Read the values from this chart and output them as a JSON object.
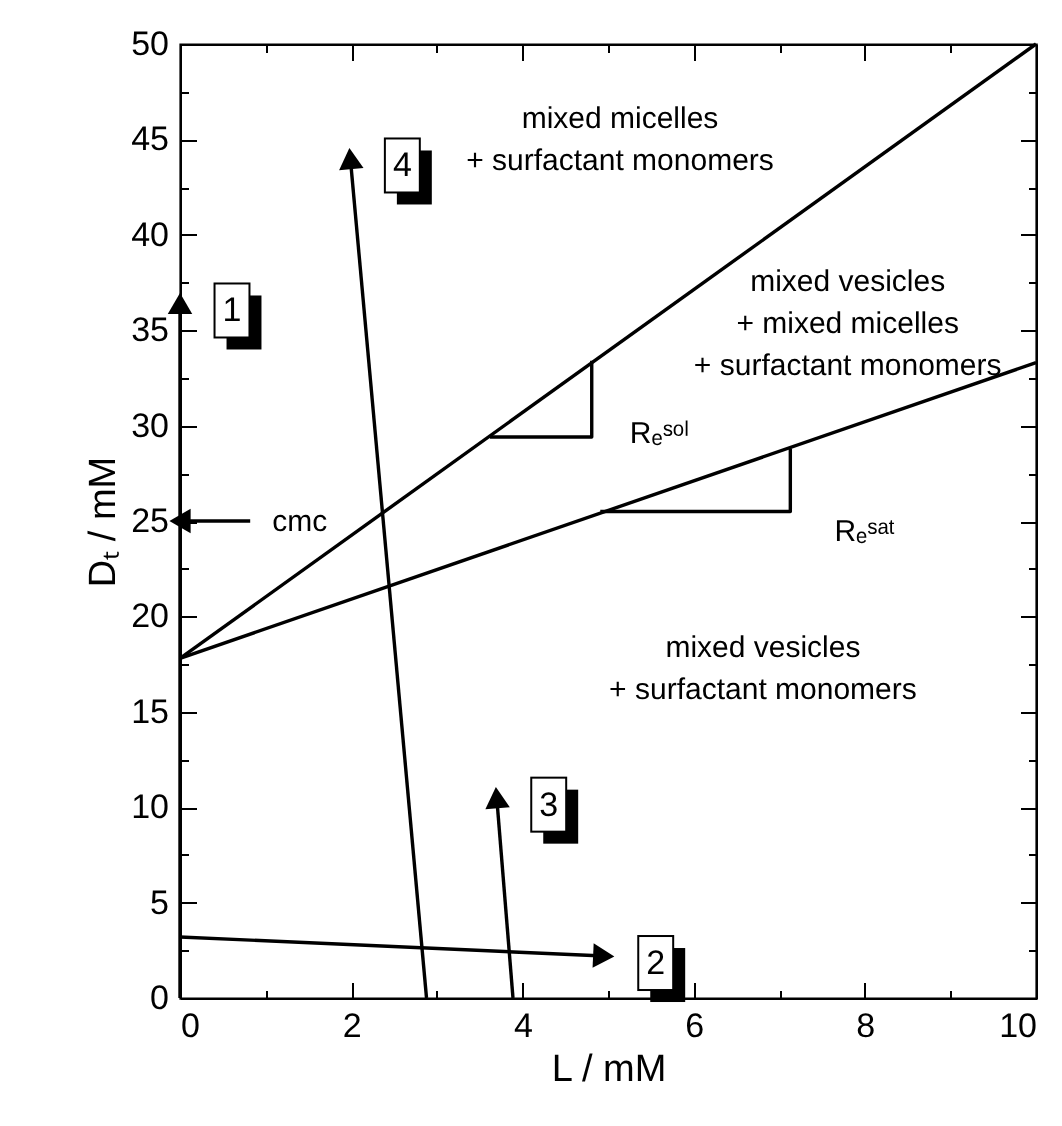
{
  "chart_data": {
    "type": "line",
    "xlabel": "L / mM",
    "ylabel": "Dₜ / mM",
    "xlim": [
      0,
      10
    ],
    "ylim": [
      0,
      50
    ],
    "xticks": [
      0,
      {
        "value": 1,
        "label": null
      },
      2,
      {
        "value": 3,
        "label": null
      },
      4,
      {
        "value": 5,
        "label": null
      },
      6,
      {
        "value": 7,
        "label": null
      },
      8,
      {
        "value": 9,
        "label": null
      },
      10
    ],
    "yticks": [
      0,
      {
        "value": 2.5,
        "label": null
      },
      5,
      {
        "value": 7.5,
        "label": null
      },
      10,
      {
        "value": 12.5,
        "label": null
      },
      15,
      {
        "value": 17.5,
        "label": null
      },
      20,
      {
        "value": 22.5,
        "label": null
      },
      25,
      {
        "value": 27.5,
        "label": null
      },
      30,
      {
        "value": 32.5,
        "label": null
      },
      35,
      {
        "value": 37.5,
        "label": null
      },
      40,
      {
        "value": 42.5,
        "label": null
      },
      45,
      {
        "value": 47.5,
        "label": null
      },
      50
    ],
    "grid": false,
    "series": [
      {
        "color": "#000000",
        "x": [
          0,
          10
        ],
        "values": [
          17.8,
          50
        ]
      },
      {
        "color": "#000000",
        "x": [
          0,
          10
        ],
        "values": [
          17.8,
          33.3
        ]
      },
      {
        "color": "#000000",
        "x": [
          3.62,
          4.81,
          4.81
        ],
        "values": [
          29.4,
          29.4,
          33.4
        ]
      },
      {
        "color": "#000000",
        "x": [
          4.91,
          7.13,
          7.13
        ],
        "values": [
          25.5,
          25.5,
          28.8
        ]
      },
      {
        "name": "1",
        "color": "#000000",
        "marker": "triangle",
        "x": [
          0,
          0
        ],
        "values": [
          0,
          36.4
        ]
      },
      {
        "name": "2",
        "color": "#000000",
        "marker": "triangle",
        "x": [
          0,
          4.95
        ],
        "values": [
          3.2,
          2.2
        ]
      },
      {
        "name": "3",
        "color": "#000000",
        "marker": "triangle",
        "x": [
          3.89,
          3.7
        ],
        "values": [
          0,
          10.5
        ]
      },
      {
        "name": "4",
        "color": "#000000",
        "marker": "triangle",
        "x": [
          2.88,
          1.99
        ],
        "values": [
          0,
          44.0
        ]
      },
      {
        "color": "#000000",
        "marker": "triangle",
        "x": [
          0.82,
          0
        ],
        "values": [
          25,
          25
        ]
      }
    ],
    "annotations": [
      "mixed micelles\n+ surfactant monomers",
      "mixed vesicles\n+ mixed micelles\n+ surfactant monomers",
      "mixed vesicles\n+ surfactant monomers",
      "cmc",
      "Rₑˢᵒˡ",
      "Rₑˢᵃᵗ"
    ]
  }
}
